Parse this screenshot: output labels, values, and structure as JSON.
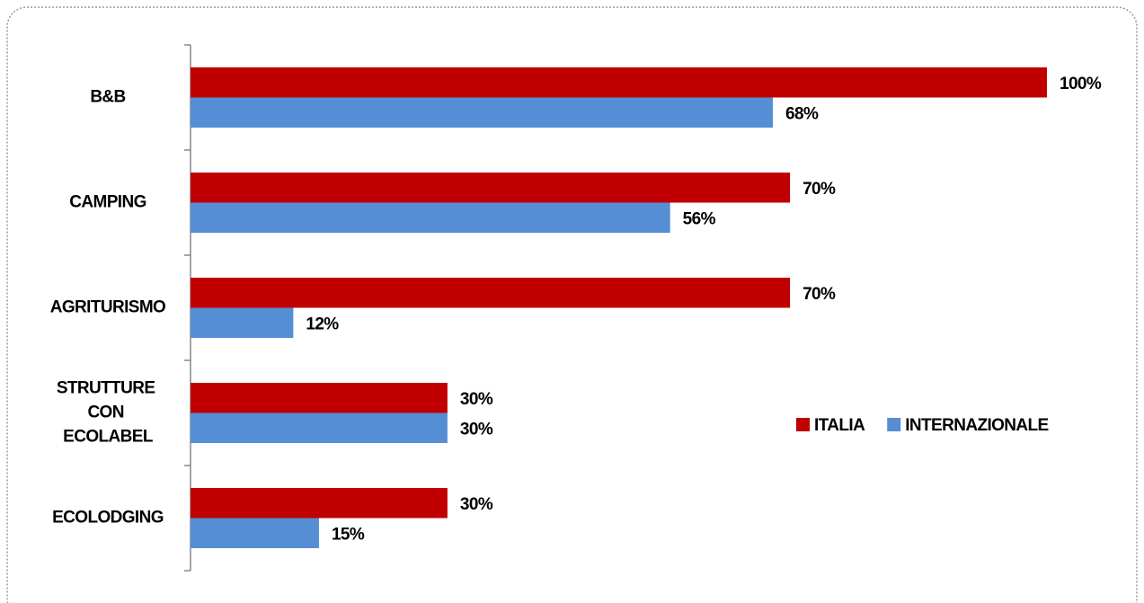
{
  "chart_data": {
    "type": "bar",
    "orientation": "horizontal",
    "categories": [
      "B&B",
      "CAMPING",
      "AGRITURISMO",
      "STRUTTURE CON ECOLABEL",
      "ECOLODGING"
    ],
    "series": [
      {
        "name": "ITALIA",
        "color": "#c00000",
        "values": [
          100,
          70,
          70,
          30,
          30
        ],
        "value_labels": [
          "100%",
          "70%",
          "70%",
          "30%",
          "30%"
        ]
      },
      {
        "name": "INTERNAZIONALE",
        "color": "#558ed5",
        "values": [
          68,
          56,
          12,
          30,
          15
        ],
        "value_labels": [
          "68%",
          "56%",
          "12%",
          "30%",
          "15%"
        ]
      }
    ],
    "xlim": [
      0,
      100
    ]
  }
}
